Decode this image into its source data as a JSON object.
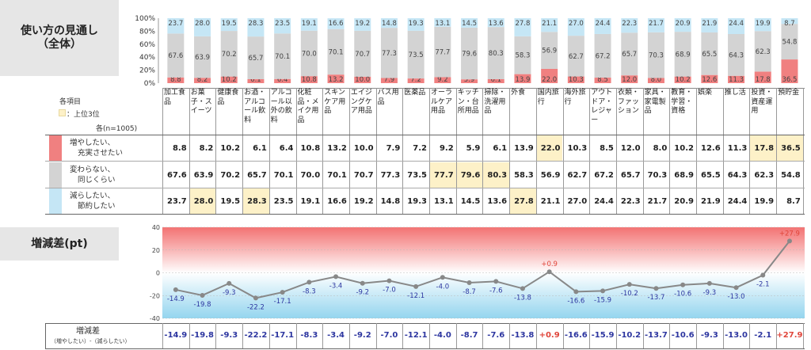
{
  "side": {
    "title1": "使い方の見通し",
    "title2": "（全体）",
    "diff_title": "増減差(pt)"
  },
  "legend": {
    "items_label": "各項目",
    "top3_label": "：上位3位",
    "n_label": "各(n=1005)",
    "top3_color": "#fdf1c8"
  },
  "rows": [
    {
      "line1": "増やしたい、",
      "line2": "充実させたい",
      "color": "#f08080"
    },
    {
      "line1": "変わらない、",
      "line2": "同じくらい",
      "color": "#d3d3d3"
    },
    {
      "line1": "減らしたい、",
      "line2": "節約したい",
      "color": "#c5e6f5"
    }
  ],
  "diff_row": {
    "label": "増減差",
    "sublabel": "（増やしたい）-（減らしたい）"
  },
  "chart_data": [
    {
      "type": "bar",
      "stacked": true,
      "percent": true,
      "title": "使い方の見通し（全体）",
      "categories": [
        "加工食品",
        "お菓子・スイーツ",
        "健康食品",
        "お酒・アルコール飲料",
        "アルコール以外の飲料",
        "化粧品・メイク用品",
        "スキンケア用品",
        "エイジングケア用品",
        "バス用品",
        "医薬品",
        "オーラルケア用品",
        "キッチン・台所用品",
        "掃除・洗濯用品",
        "外食",
        "国内旅行",
        "海外旅行",
        "アウトドア・レジャー",
        "衣類・ファッション",
        "家具・家電製品",
        "教育・学習・資格",
        "娯楽",
        "推し活",
        "投資・資産運用",
        "預貯金"
      ],
      "category_display": [
        "加工食品",
        "お菓子・スイーツ",
        "健康食品",
        "お酒・アルコール飲料",
        "アルコール以外の飲料",
        "化粧品・メイク用品",
        "スキンケア用品",
        "エイジングケア用品",
        "バス用品",
        "医薬品",
        "オーラルケア用品",
        "キッチン・台所用品",
        "掃除・洗濯用品",
        "外食",
        "国内旅行",
        "海外旅行",
        "アウトドア・レジャー",
        "衣類・ファッション",
        "家具・家電製品",
        "教育・学習・資格",
        "娯楽",
        "推し活",
        "投資・資産運用",
        "預貯金"
      ],
      "yticks": [
        "0%",
        "20%",
        "40%",
        "60%",
        "80%",
        "100%"
      ],
      "ylim": [
        0,
        100
      ],
      "series": [
        {
          "name": "増やしたい、充実させたい",
          "color": "#f08080",
          "values": [
            8.8,
            8.2,
            10.2,
            6.1,
            6.4,
            10.8,
            13.2,
            10.0,
            7.9,
            7.2,
            9.2,
            5.9,
            6.1,
            13.9,
            22.0,
            10.3,
            8.5,
            12.0,
            8.0,
            10.2,
            12.6,
            11.3,
            17.8,
            36.5
          ]
        },
        {
          "name": "変わらない、同じくらい",
          "color": "#d3d3d3",
          "values": [
            67.6,
            63.9,
            70.2,
            65.7,
            70.1,
            70.0,
            70.1,
            70.7,
            77.3,
            73.5,
            77.7,
            79.6,
            80.3,
            58.3,
            56.9,
            62.7,
            67.2,
            65.7,
            70.3,
            68.9,
            65.5,
            64.3,
            62.3,
            54.8
          ]
        },
        {
          "name": "減らしたい、節約したい",
          "color": "#c5e6f5",
          "values": [
            23.7,
            28.0,
            19.5,
            28.3,
            23.5,
            19.1,
            16.6,
            19.2,
            14.8,
            19.3,
            13.1,
            14.5,
            13.6,
            27.8,
            21.1,
            27.0,
            24.4,
            22.3,
            21.7,
            20.9,
            21.9,
            24.4,
            19.9,
            8.7
          ]
        }
      ],
      "bar_labels": [
        [
          "8.8",
          "8.2",
          "10.2",
          "6.1",
          "6.4",
          "10.8",
          "13.2",
          "10.0",
          "7.9",
          "7.2",
          "9.2",
          "5.9",
          "6.1",
          "13.9",
          "22.0",
          "10.3",
          "8.5",
          "12.0",
          "8.0",
          "10.2",
          "12.6",
          "11.3",
          "17.8",
          "36.5"
        ],
        [
          "67.6",
          "63.9",
          "70.2",
          "65.7",
          "70.1",
          "70.0",
          "70.1",
          "70.7",
          "77.3",
          "73.5",
          "77.7",
          "79.6",
          "80.3",
          "58.3",
          "56.9",
          "62.7",
          "67.2",
          "65.7",
          "70.3",
          "68.9",
          "65.5",
          "64.3",
          "62.3",
          "54.8"
        ],
        [
          "23.7",
          "28.0",
          "19.5",
          "28.3",
          "23.5",
          "19.1",
          "16.6",
          "19.2",
          "14.8",
          "19.3",
          "13.1",
          "14.5",
          "13.6",
          "27.8",
          "21.1",
          "27.0",
          "24.4",
          "22.3",
          "21.7",
          "20.9",
          "21.9",
          "24.4",
          "19.9",
          "8.7"
        ]
      ],
      "top3": [
        [
          14,
          22,
          23
        ],
        [
          10,
          11,
          12
        ],
        [
          1,
          3,
          13
        ]
      ]
    },
    {
      "type": "line",
      "title": "増減差(pt)",
      "ylabel": "pt",
      "ylim": [
        -40,
        40
      ],
      "yticks": [
        "40",
        "20",
        "0",
        "-20",
        "-40"
      ],
      "values": [
        -14.9,
        -19.8,
        -9.3,
        -22.2,
        -17.1,
        -8.3,
        -3.4,
        -9.2,
        -7.0,
        -12.1,
        -4.0,
        -8.7,
        -7.6,
        -13.8,
        0.9,
        -16.6,
        -15.9,
        -10.2,
        -13.7,
        -10.6,
        -9.3,
        -13.0,
        -2.1,
        27.9
      ],
      "labels": [
        "-14.9",
        "-19.8",
        "-9.3",
        "-22.2",
        "-17.1",
        "-8.3",
        "-3.4",
        "-9.2",
        "-7.0",
        "-12.1",
        "-4.0",
        "-8.7",
        "-7.6",
        "-13.8",
        "+0.9",
        "-16.6",
        "-15.9",
        "-10.2",
        "-13.7",
        "-10.6",
        "-9.3",
        "-13.0",
        "-2.1",
        "+27.9"
      ],
      "positive_color": "#e0453a",
      "negative_color": "#2d36a0",
      "line_color": "#888888"
    }
  ]
}
